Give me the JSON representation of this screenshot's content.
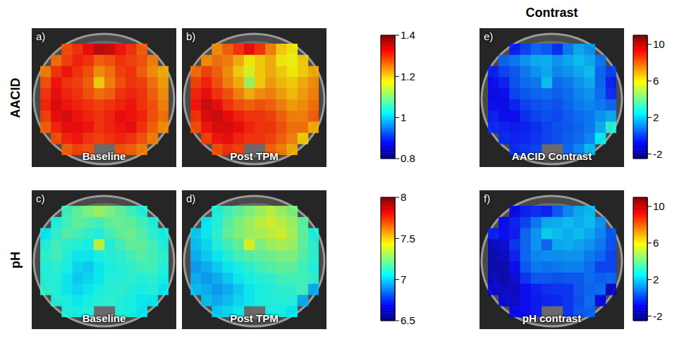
{
  "row_labels": [
    "AACID",
    "pH"
  ],
  "column_title": "Contrast",
  "chart_data": [
    {
      "type": "heatmap",
      "label": "a)",
      "title": "Baseline",
      "colorbar": {
        "range": [
          0.8,
          1.4
        ],
        "ticks": [
          0.8,
          1,
          1.2,
          1.4
        ]
      },
      "cells": [
        [
          null,
          null,
          1.28,
          1.3,
          1.33,
          1.36,
          1.35,
          1.32,
          1.3,
          1.27,
          null,
          null
        ],
        [
          null,
          1.26,
          1.29,
          1.31,
          1.3,
          1.27,
          1.28,
          1.3,
          1.29,
          1.28,
          1.25,
          null
        ],
        [
          1.25,
          1.3,
          1.32,
          1.3,
          1.28,
          1.24,
          1.26,
          1.29,
          1.3,
          1.27,
          1.24,
          1.22
        ],
        [
          1.28,
          1.32,
          1.3,
          1.29,
          1.27,
          1.2,
          1.25,
          1.28,
          1.3,
          1.29,
          1.26,
          1.23
        ],
        [
          1.3,
          1.33,
          1.31,
          1.3,
          1.28,
          1.26,
          1.27,
          1.3,
          1.31,
          1.3,
          1.27,
          1.24
        ],
        [
          1.31,
          1.34,
          1.32,
          1.31,
          1.3,
          1.29,
          1.3,
          1.31,
          1.32,
          1.3,
          1.28,
          1.25
        ],
        [
          1.29,
          1.33,
          1.34,
          1.32,
          1.31,
          1.3,
          1.31,
          1.33,
          1.32,
          1.31,
          1.28,
          1.26
        ],
        [
          1.27,
          1.31,
          1.33,
          1.33,
          1.32,
          1.3,
          1.31,
          1.32,
          1.33,
          1.3,
          1.27,
          1.24
        ],
        [
          null,
          1.28,
          1.31,
          1.32,
          1.3,
          1.29,
          1.3,
          1.31,
          1.3,
          1.28,
          1.25,
          null
        ],
        [
          null,
          null,
          1.27,
          1.29,
          1.28,
          null,
          null,
          1.28,
          1.27,
          1.25,
          null,
          null
        ]
      ]
    },
    {
      "type": "heatmap",
      "label": "b)",
      "title": "Post TPM",
      "colorbar": {
        "range": [
          0.8,
          1.4
        ],
        "ticks": [
          0.8,
          1,
          1.2,
          1.4
        ]
      },
      "cells": [
        [
          null,
          null,
          1.24,
          1.27,
          1.3,
          1.33,
          1.3,
          1.25,
          1.2,
          1.18,
          null,
          null
        ],
        [
          null,
          1.24,
          1.26,
          1.25,
          1.22,
          1.18,
          1.2,
          1.22,
          1.18,
          1.17,
          1.2,
          null
        ],
        [
          1.26,
          1.29,
          1.27,
          1.24,
          1.2,
          1.16,
          1.2,
          1.22,
          1.2,
          1.18,
          1.2,
          1.22
        ],
        [
          1.29,
          1.31,
          1.28,
          1.25,
          1.22,
          1.12,
          1.2,
          1.23,
          1.21,
          1.2,
          1.22,
          1.24
        ],
        [
          1.31,
          1.33,
          1.3,
          1.28,
          1.25,
          1.22,
          1.24,
          1.25,
          1.23,
          1.21,
          1.23,
          1.25
        ],
        [
          1.32,
          1.35,
          1.33,
          1.3,
          1.28,
          1.27,
          1.28,
          1.27,
          1.25,
          1.23,
          1.24,
          1.26
        ],
        [
          1.3,
          1.34,
          1.35,
          1.33,
          1.31,
          1.3,
          1.3,
          1.29,
          1.27,
          1.25,
          1.25,
          1.27
        ],
        [
          1.28,
          1.32,
          1.34,
          1.34,
          1.33,
          1.31,
          1.3,
          1.3,
          1.28,
          1.26,
          1.26,
          1.22
        ],
        [
          null,
          1.29,
          1.32,
          1.33,
          1.31,
          1.3,
          1.3,
          1.29,
          1.27,
          1.25,
          1.2,
          null
        ],
        [
          null,
          null,
          1.28,
          1.3,
          1.29,
          null,
          null,
          1.27,
          1.25,
          1.22,
          null,
          null
        ]
      ]
    },
    {
      "type": "heatmap",
      "label": "e)",
      "title": "AACID Contrast",
      "colorbar": {
        "range": [
          -2.5,
          11
        ],
        "ticks": [
          -2,
          2,
          6,
          10
        ]
      },
      "cells": [
        [
          null,
          null,
          -0.5,
          0,
          0.5,
          0.3,
          -0.3,
          0.8,
          1.5,
          1.2,
          null,
          null
        ],
        [
          null,
          0.5,
          0.8,
          1.2,
          1.5,
          1.6,
          1.2,
          1.5,
          1.8,
          1.5,
          0.8,
          null
        ],
        [
          -0.5,
          0,
          0.3,
          0.8,
          1.2,
          1.5,
          1.0,
          1.2,
          1.5,
          1.8,
          0.5,
          0
        ],
        [
          -0.8,
          -0.5,
          0.2,
          0.6,
          0.8,
          1.8,
          0.6,
          0.8,
          1.2,
          1.5,
          0.5,
          -0.5
        ],
        [
          -1,
          -0.8,
          0,
          0.3,
          0.5,
          0.6,
          0.4,
          0.6,
          1.0,
          1.2,
          0.6,
          -0.3
        ],
        [
          -0.8,
          -1,
          -0.5,
          0,
          0.2,
          0.3,
          0.2,
          0.5,
          0.8,
          1.0,
          0.8,
          0.5
        ],
        [
          -0.5,
          -0.8,
          -0.8,
          -0.3,
          0,
          0.2,
          0.1,
          0.4,
          0.6,
          0.8,
          1.2,
          1.5
        ],
        [
          -0.3,
          -0.5,
          -0.6,
          -0.5,
          -0.3,
          0,
          0.2,
          0.3,
          0.5,
          0.8,
          1.5,
          3.0
        ],
        [
          null,
          -0.3,
          -0.5,
          -0.4,
          -0.2,
          0,
          0.2,
          0.4,
          0.6,
          1.0,
          2.5,
          null
        ],
        [
          null,
          null,
          -0.3,
          -0.2,
          0,
          null,
          null,
          0.5,
          1.0,
          1.8,
          null,
          null
        ]
      ]
    },
    {
      "type": "heatmap",
      "label": "c)",
      "title": "Baseline",
      "colorbar": {
        "range": [
          6.5,
          8
        ],
        "ticks": [
          6.5,
          7,
          7.5,
          8
        ]
      },
      "cells": [
        [
          null,
          null,
          7.15,
          7.2,
          7.25,
          7.3,
          7.25,
          7.2,
          7.15,
          7.1,
          null,
          null
        ],
        [
          null,
          7.1,
          7.15,
          7.2,
          7.18,
          7.15,
          7.2,
          7.22,
          7.2,
          7.15,
          7.1,
          null
        ],
        [
          7.05,
          7.12,
          7.18,
          7.15,
          7.12,
          7.1,
          7.15,
          7.2,
          7.22,
          7.18,
          7.12,
          7.08
        ],
        [
          7.1,
          7.15,
          7.12,
          7.1,
          7.08,
          7.35,
          7.1,
          7.15,
          7.2,
          7.2,
          7.15,
          7.1
        ],
        [
          7.12,
          7.15,
          7.1,
          7.05,
          7.05,
          7.08,
          7.1,
          7.12,
          7.15,
          7.18,
          7.15,
          7.12
        ],
        [
          7.1,
          7.12,
          7.08,
          7.02,
          7.0,
          7.05,
          7.08,
          7.1,
          7.12,
          7.15,
          7.15,
          7.1
        ],
        [
          7.1,
          7.1,
          7.05,
          7.0,
          7.02,
          7.05,
          7.1,
          7.1,
          7.12,
          7.1,
          7.12,
          7.08
        ],
        [
          7.12,
          7.1,
          7.05,
          7.02,
          7.05,
          7.08,
          7.1,
          7.12,
          7.1,
          7.08,
          7.1,
          7.05
        ],
        [
          null,
          7.1,
          7.08,
          7.05,
          7.08,
          7.1,
          7.12,
          7.1,
          7.08,
          7.05,
          7.05,
          null
        ],
        [
          null,
          null,
          7.1,
          7.08,
          7.1,
          null,
          null,
          7.1,
          7.08,
          7.05,
          null,
          null
        ]
      ]
    },
    {
      "type": "heatmap",
      "label": "d)",
      "title": "Post TPM",
      "colorbar": {
        "range": [
          6.5,
          8
        ],
        "ticks": [
          6.5,
          7,
          7.5,
          8
        ]
      },
      "cells": [
        [
          null,
          null,
          7.1,
          7.15,
          7.2,
          7.25,
          7.3,
          7.35,
          7.3,
          7.25,
          null,
          null
        ],
        [
          null,
          7.05,
          7.1,
          7.18,
          7.25,
          7.3,
          7.35,
          7.38,
          7.35,
          7.3,
          7.2,
          null
        ],
        [
          7.0,
          7.05,
          7.12,
          7.2,
          7.25,
          7.3,
          7.32,
          7.35,
          7.38,
          7.32,
          7.2,
          7.1
        ],
        [
          6.98,
          7.02,
          7.1,
          7.15,
          7.2,
          7.4,
          7.25,
          7.3,
          7.32,
          7.3,
          7.2,
          7.12
        ],
        [
          6.95,
          7.0,
          7.05,
          7.1,
          7.15,
          7.18,
          7.2,
          7.22,
          7.25,
          7.25,
          7.18,
          7.12
        ],
        [
          6.92,
          6.95,
          7.0,
          7.05,
          7.08,
          7.12,
          7.15,
          7.18,
          7.2,
          7.2,
          7.15,
          7.1
        ],
        [
          6.95,
          6.92,
          6.95,
          7.0,
          7.05,
          7.08,
          7.1,
          7.12,
          7.15,
          7.15,
          7.15,
          7.12
        ],
        [
          6.98,
          6.95,
          6.92,
          6.95,
          7.0,
          7.05,
          7.08,
          7.1,
          7.12,
          7.12,
          7.15,
          6.95
        ],
        [
          null,
          6.98,
          6.95,
          6.98,
          7.02,
          7.05,
          7.08,
          7.1,
          7.1,
          7.1,
          6.95,
          null
        ],
        [
          null,
          null,
          7.0,
          7.02,
          7.05,
          null,
          null,
          7.08,
          7.08,
          7.05,
          null,
          null
        ]
      ]
    },
    {
      "type": "heatmap",
      "label": "f)",
      "title": "pH contrast",
      "colorbar": {
        "range": [
          -2.5,
          11
        ],
        "ticks": [
          -2,
          2,
          6,
          10
        ]
      },
      "cells": [
        [
          null,
          null,
          -1,
          -0.5,
          -0.3,
          -0.5,
          0.3,
          1.0,
          1.5,
          1.8,
          null,
          null
        ],
        [
          null,
          -0.8,
          -0.5,
          0,
          0.8,
          1.5,
          1.6,
          1.8,
          1.6,
          1.8,
          1.2,
          null
        ],
        [
          -0.5,
          -0.8,
          -0.6,
          0.5,
          1.2,
          2.0,
          1.8,
          1.6,
          1.8,
          1.5,
          1.0,
          0.3
        ],
        [
          -1.5,
          -1.2,
          -0.2,
          0.5,
          1.2,
          0.5,
          1.5,
          1.6,
          1.4,
          1.2,
          0.8,
          0.2
        ],
        [
          -1.8,
          -1.5,
          -0.5,
          0.5,
          1.0,
          1.1,
          1.1,
          1.2,
          1.2,
          0.8,
          0.5,
          0
        ],
        [
          -1.8,
          -1.8,
          -0.8,
          0.3,
          0.8,
          0.7,
          0.8,
          0.9,
          0.9,
          0.6,
          0,
          0
        ],
        [
          -1.5,
          -1.8,
          -1.2,
          -0.2,
          0.3,
          0.3,
          0.2,
          0.3,
          0.3,
          0.6,
          0.4,
          0.5
        ],
        [
          -1.2,
          -1.5,
          -1.5,
          -0.8,
          -0.5,
          -0.3,
          -0.2,
          -0.2,
          0.3,
          0.5,
          0.6,
          -1.5
        ],
        [
          null,
          -1.2,
          -1.4,
          -0.8,
          -0.6,
          -0.5,
          -0.4,
          -0.2,
          0.2,
          0.6,
          -1.0,
          null
        ],
        [
          null,
          null,
          -1.0,
          -0.8,
          -0.6,
          null,
          null,
          -0.2,
          0.3,
          0.5,
          null,
          null
        ]
      ]
    }
  ]
}
